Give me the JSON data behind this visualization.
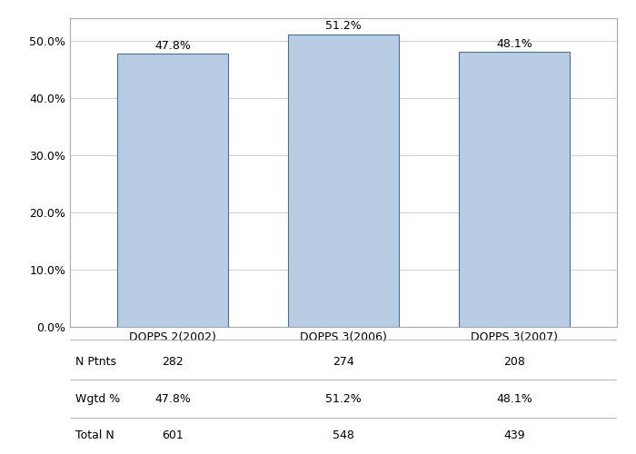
{
  "categories": [
    "DOPPS 2(2002)",
    "DOPPS 3(2006)",
    "DOPPS 3(2007)"
  ],
  "values": [
    47.8,
    51.2,
    48.1
  ],
  "bar_color": "#b8cce4",
  "bar_edge_color": "#4472a8",
  "value_labels": [
    "47.8%",
    "51.2%",
    "48.1%"
  ],
  "ylim": [
    0,
    54
  ],
  "yticks": [
    0,
    10,
    20,
    30,
    40,
    50
  ],
  "ytick_labels": [
    "0.0%",
    "10.0%",
    "20.0%",
    "30.0%",
    "40.0%",
    "50.0%"
  ],
  "table_rows": {
    "N Ptnts": [
      "282",
      "274",
      "208"
    ],
    "Wgtd %": [
      "47.8%",
      "51.2%",
      "48.1%"
    ],
    "Total N": [
      "601",
      "548",
      "439"
    ]
  },
  "table_row_order": [
    "N Ptnts",
    "Wgtd %",
    "Total N"
  ],
  "background_color": "#ffffff",
  "grid_color": "#d0d0d0",
  "bar_width": 0.65,
  "label_fontsize": 9,
  "tick_fontsize": 9,
  "table_fontsize": 9
}
